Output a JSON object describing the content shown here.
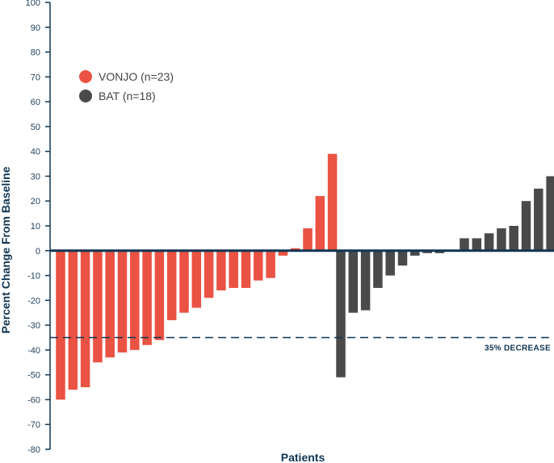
{
  "chart_data": {
    "type": "bar",
    "xlabel": "Patients",
    "ylabel": "Percent Change From Baseline",
    "ylim": [
      -80,
      100
    ],
    "yticks": [
      100,
      90,
      80,
      70,
      60,
      50,
      40,
      30,
      20,
      10,
      0,
      -10,
      -20,
      -30,
      -40,
      -50,
      -60,
      -70,
      -80
    ],
    "legend_position": "upper-left",
    "grid": false,
    "series": [
      {
        "name": "VONJO (n=23)",
        "color": "#ea5243",
        "values": [
          -60,
          -56,
          -55,
          -45,
          -43,
          -41,
          -40,
          -38,
          -36,
          -28,
          -25,
          -23,
          -19,
          -16,
          -15,
          -15,
          -12,
          -11,
          -2,
          1,
          9,
          22,
          39
        ]
      },
      {
        "name": "BAT (n=18)",
        "color": "#4a4a4a",
        "values": [
          -51,
          -25,
          -24,
          -15,
          -10,
          -6,
          -2,
          -1,
          -1,
          0,
          5,
          5,
          7,
          9,
          10,
          20,
          25,
          30
        ]
      }
    ],
    "reference_line": {
      "y": -35,
      "label": "35% DECREASE",
      "style": "dashed",
      "color": "#0f3553"
    },
    "axis_color": "#0f3553"
  }
}
